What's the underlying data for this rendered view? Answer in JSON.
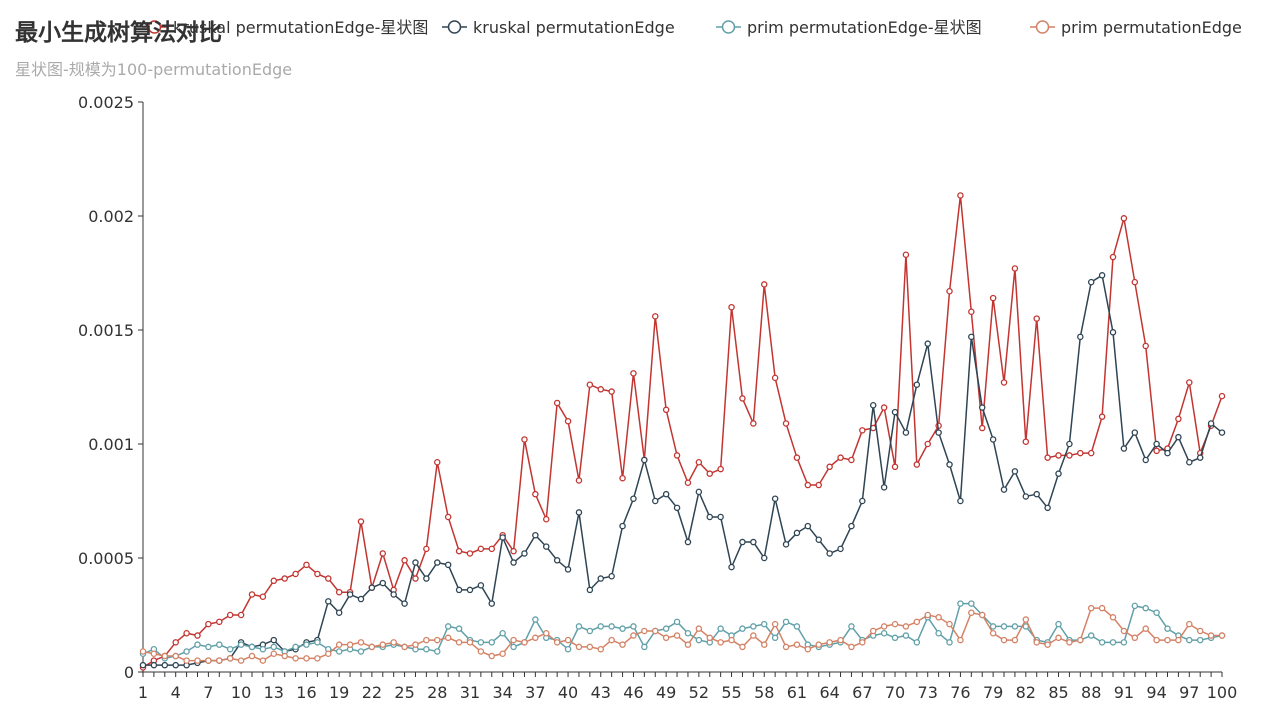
{
  "chart_data": {
    "type": "line",
    "title": "最小生成树算法对比",
    "subtitle": "星状图-规模为100-permutationEdge",
    "ylim": [
      0,
      0.0025
    ],
    "y_ticks": [
      "0",
      "0.0005",
      "0.001",
      "0.0015",
      "0.002",
      "0.0025"
    ],
    "x": [
      1,
      2,
      3,
      4,
      5,
      6,
      7,
      8,
      9,
      10,
      11,
      12,
      13,
      14,
      15,
      16,
      17,
      18,
      19,
      20,
      21,
      22,
      23,
      24,
      25,
      26,
      27,
      28,
      29,
      30,
      31,
      32,
      33,
      34,
      35,
      36,
      37,
      38,
      39,
      40,
      41,
      42,
      43,
      44,
      45,
      46,
      47,
      48,
      49,
      50,
      51,
      52,
      53,
      54,
      55,
      56,
      57,
      58,
      59,
      60,
      61,
      62,
      63,
      64,
      65,
      66,
      67,
      68,
      69,
      70,
      71,
      72,
      73,
      74,
      75,
      76,
      77,
      78,
      79,
      80,
      81,
      82,
      83,
      84,
      85,
      86,
      87,
      88,
      89,
      90,
      91,
      92,
      93,
      94,
      95,
      96,
      97,
      98,
      99,
      100
    ],
    "x_tick_labels": [
      "1",
      "4",
      "7",
      "10",
      "13",
      "16",
      "19",
      "22",
      "25",
      "28",
      "31",
      "34",
      "37",
      "40",
      "43",
      "46",
      "49",
      "52",
      "55",
      "58",
      "61",
      "64",
      "67",
      "70",
      "73",
      "76",
      "79",
      "82",
      "85",
      "88",
      "91",
      "94",
      "97",
      "100"
    ],
    "legend_position": "top-right",
    "grid": false,
    "series": [
      {
        "name": "kruskal permutationEdge-星状图",
        "color": "#c23531",
        "values": [
          2e-05,
          5e-05,
          7e-05,
          0.00013,
          0.00017,
          0.00016,
          0.00021,
          0.00022,
          0.00025,
          0.00025,
          0.00034,
          0.00033,
          0.0004,
          0.00041,
          0.00043,
          0.00047,
          0.00043,
          0.00041,
          0.00035,
          0.00035,
          0.00066,
          0.00037,
          0.00052,
          0.00036,
          0.00049,
          0.00041,
          0.00054,
          0.00092,
          0.00068,
          0.00053,
          0.00052,
          0.00054,
          0.00054,
          0.0006,
          0.00053,
          0.00102,
          0.00078,
          0.00067,
          0.00118,
          0.0011,
          0.00084,
          0.00126,
          0.00124,
          0.00123,
          0.00085,
          0.00131,
          0.00093,
          0.00156,
          0.00115,
          0.00095,
          0.00083,
          0.00092,
          0.00087,
          0.00089,
          0.0016,
          0.0012,
          0.00109,
          0.0017,
          0.00129,
          0.00109,
          0.00094,
          0.00082,
          0.00082,
          0.0009,
          0.00094,
          0.00093,
          0.00106,
          0.00107,
          0.00116,
          0.0009,
          0.00183,
          0.00091,
          0.001,
          0.00108,
          0.00167,
          0.00209,
          0.00158,
          0.00107,
          0.00164,
          0.00127,
          0.00177,
          0.00101,
          0.00155,
          0.00094,
          0.00095,
          0.00095,
          0.00096,
          0.00096,
          0.00112,
          0.00182,
          0.00199,
          0.00171,
          0.00143,
          0.00097,
          0.00098,
          0.00111,
          0.00127,
          0.00096,
          0.00108,
          0.00121
        ]
      },
      {
        "name": "kruskal permutationEdge",
        "color": "#2f4554",
        "values": [
          3e-05,
          3e-05,
          3e-05,
          3e-05,
          3e-05,
          4e-05,
          5e-05,
          5e-05,
          6e-05,
          0.00013,
          0.00011,
          0.00012,
          0.00014,
          9e-05,
          0.0001,
          0.00013,
          0.00014,
          0.00031,
          0.00026,
          0.00034,
          0.00032,
          0.00037,
          0.00039,
          0.00034,
          0.0003,
          0.00048,
          0.00041,
          0.00048,
          0.00047,
          0.00036,
          0.00036,
          0.00038,
          0.0003,
          0.00059,
          0.00048,
          0.00052,
          0.0006,
          0.00055,
          0.00049,
          0.00045,
          0.0007,
          0.00036,
          0.00041,
          0.00042,
          0.00064,
          0.00076,
          0.00093,
          0.00075,
          0.00078,
          0.00072,
          0.00057,
          0.00079,
          0.00068,
          0.00068,
          0.00046,
          0.00057,
          0.00057,
          0.0005,
          0.00076,
          0.00056,
          0.00061,
          0.00064,
          0.00058,
          0.00052,
          0.00054,
          0.00064,
          0.00075,
          0.00117,
          0.00081,
          0.00114,
          0.00105,
          0.00126,
          0.00144,
          0.00105,
          0.00091,
          0.00075,
          0.00147,
          0.00116,
          0.00102,
          0.0008,
          0.00088,
          0.00077,
          0.00078,
          0.00072,
          0.00087,
          0.001,
          0.00147,
          0.00171,
          0.00174,
          0.00149,
          0.00098,
          0.00105,
          0.00093,
          0.001,
          0.00096,
          0.00103,
          0.00092,
          0.00094,
          0.00109,
          0.00105
        ]
      },
      {
        "name": "prim permutationEdge-星状图",
        "color": "#61a0a8",
        "values": [
          8e-05,
          0.0001,
          6e-05,
          7e-05,
          9e-05,
          0.00012,
          0.00011,
          0.00012,
          0.0001,
          0.00012,
          0.00011,
          0.0001,
          0.00011,
          9e-05,
          0.00011,
          0.00012,
          0.00013,
          0.0001,
          9e-05,
          0.0001,
          9e-05,
          0.00011,
          0.00011,
          0.00012,
          0.00011,
          0.0001,
          0.0001,
          9e-05,
          0.0002,
          0.00019,
          0.00014,
          0.00013,
          0.00013,
          0.00017,
          0.00011,
          0.00013,
          0.00023,
          0.00015,
          0.00014,
          0.0001,
          0.0002,
          0.00018,
          0.0002,
          0.0002,
          0.00019,
          0.0002,
          0.00011,
          0.00018,
          0.00019,
          0.00022,
          0.00017,
          0.00014,
          0.00013,
          0.00019,
          0.00016,
          0.00019,
          0.0002,
          0.00021,
          0.00015,
          0.00022,
          0.0002,
          0.00012,
          0.00011,
          0.00012,
          0.00013,
          0.0002,
          0.00014,
          0.00016,
          0.00017,
          0.00015,
          0.00016,
          0.00013,
          0.00024,
          0.00017,
          0.00013,
          0.0003,
          0.0003,
          0.00025,
          0.0002,
          0.0002,
          0.0002,
          0.0002,
          0.00014,
          0.00013,
          0.00021,
          0.00014,
          0.00014,
          0.00016,
          0.00013,
          0.00013,
          0.00013,
          0.00029,
          0.00028,
          0.00026,
          0.00019,
          0.00016,
          0.00014,
          0.00014,
          0.00015,
          0.00016
        ]
      },
      {
        "name": "prim permutationEdge",
        "color": "#d48265",
        "values": [
          9e-05,
          8e-05,
          7e-05,
          7e-05,
          5e-05,
          5e-05,
          5e-05,
          5e-05,
          6e-05,
          5e-05,
          7e-05,
          5e-05,
          8e-05,
          7e-05,
          6e-05,
          6e-05,
          6e-05,
          8e-05,
          0.00012,
          0.00012,
          0.00013,
          0.00011,
          0.00012,
          0.00013,
          0.00011,
          0.00012,
          0.00014,
          0.00014,
          0.00015,
          0.00013,
          0.00013,
          9e-05,
          7e-05,
          8e-05,
          0.00014,
          0.00013,
          0.00015,
          0.00017,
          0.00013,
          0.00014,
          0.00011,
          0.00011,
          0.0001,
          0.00014,
          0.00012,
          0.00016,
          0.00018,
          0.00018,
          0.00015,
          0.00016,
          0.00012,
          0.00019,
          0.00015,
          0.00013,
          0.00014,
          0.00011,
          0.00016,
          0.00012,
          0.00021,
          0.00011,
          0.00012,
          0.0001,
          0.00012,
          0.00013,
          0.00014,
          0.00011,
          0.00013,
          0.00018,
          0.0002,
          0.00021,
          0.0002,
          0.00022,
          0.00025,
          0.00024,
          0.00021,
          0.00014,
          0.00026,
          0.00025,
          0.00017,
          0.00014,
          0.00014,
          0.00023,
          0.00013,
          0.00012,
          0.00015,
          0.00013,
          0.00014,
          0.00028,
          0.00028,
          0.00024,
          0.00018,
          0.00015,
          0.00019,
          0.00014,
          0.00014,
          0.00014,
          0.00021,
          0.00018,
          0.00016,
          0.00016
        ]
      }
    ]
  }
}
